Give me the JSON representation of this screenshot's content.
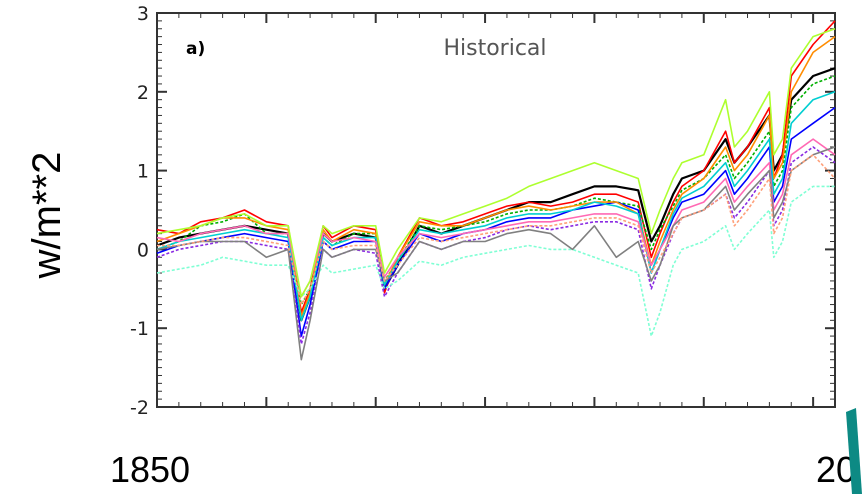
{
  "chart_data": {
    "type": "line",
    "panel_label": "a)",
    "title": "Historical",
    "ylabel": "w/m**2",
    "x_start_label": "1850",
    "x_end_label": "20",
    "xlim": [
      1850,
      2005
    ],
    "ylim": [
      -2,
      3
    ],
    "yticks": [
      "3",
      "2",
      "1",
      "0",
      "-1",
      "-2"
    ],
    "ytick_values": [
      3,
      2,
      1,
      0,
      -1,
      -2
    ],
    "grid": false,
    "legend": "none",
    "x": [
      1850,
      1855,
      1860,
      1865,
      1870,
      1875,
      1880,
      1883,
      1885,
      1888,
      1890,
      1895,
      1900,
      1902,
      1905,
      1910,
      1915,
      1920,
      1925,
      1930,
      1935,
      1940,
      1945,
      1950,
      1955,
      1960,
      1963,
      1965,
      1968,
      1970,
      1975,
      1980,
      1982,
      1985,
      1990,
      1991,
      1993,
      1995,
      2000,
      2005
    ],
    "series": [
      {
        "color": "#000000",
        "values": [
          0.05,
          0.15,
          0.2,
          0.25,
          0.3,
          0.25,
          0.2,
          -0.9,
          -0.6,
          0.2,
          0.1,
          0.2,
          0.15,
          -0.5,
          -0.2,
          0.3,
          0.2,
          0.3,
          0.4,
          0.5,
          0.6,
          0.6,
          0.7,
          0.8,
          0.8,
          0.75,
          0.1,
          0.3,
          0.7,
          0.9,
          1.0,
          1.4,
          1.1,
          1.3,
          1.7,
          1.0,
          1.2,
          1.9,
          2.2,
          2.3
        ]
      },
      {
        "color": "#ff0000",
        "values": [
          0.25,
          0.2,
          0.35,
          0.4,
          0.5,
          0.35,
          0.3,
          -0.8,
          -0.5,
          0.3,
          0.15,
          0.3,
          0.25,
          -0.55,
          -0.1,
          0.4,
          0.3,
          0.35,
          0.45,
          0.55,
          0.6,
          0.55,
          0.6,
          0.7,
          0.7,
          0.6,
          -0.1,
          0.2,
          0.6,
          0.8,
          1.0,
          1.5,
          1.1,
          1.3,
          1.8,
          0.9,
          1.2,
          2.2,
          2.6,
          2.9
        ]
      },
      {
        "color": "#00b000",
        "values": [
          0.0,
          0.1,
          0.3,
          0.35,
          0.45,
          0.2,
          0.2,
          -0.7,
          -0.5,
          0.15,
          0.05,
          0.2,
          0.2,
          -0.4,
          -0.15,
          0.3,
          0.25,
          0.3,
          0.35,
          0.45,
          0.5,
          0.5,
          0.55,
          0.65,
          0.6,
          0.55,
          0.0,
          0.25,
          0.55,
          0.75,
          0.9,
          1.2,
          0.9,
          1.1,
          1.5,
          0.8,
          1.0,
          1.8,
          2.1,
          2.2
        ]
      },
      {
        "color": "#0000ff",
        "values": [
          -0.05,
          0.05,
          0.1,
          0.15,
          0.2,
          0.15,
          0.1,
          -1.1,
          -0.7,
          0.1,
          0.0,
          0.1,
          0.1,
          -0.5,
          -0.2,
          0.2,
          0.1,
          0.2,
          0.25,
          0.35,
          0.4,
          0.4,
          0.5,
          0.55,
          0.6,
          0.5,
          -0.3,
          0.0,
          0.4,
          0.6,
          0.7,
          1.0,
          0.7,
          0.9,
          1.3,
          0.6,
          0.8,
          1.4,
          1.6,
          1.8
        ]
      },
      {
        "color": "#ff8c00",
        "values": [
          0.1,
          0.2,
          0.3,
          0.4,
          0.4,
          0.3,
          0.25,
          -0.85,
          -0.55,
          0.25,
          0.1,
          0.25,
          0.2,
          -0.45,
          -0.1,
          0.35,
          0.3,
          0.3,
          0.4,
          0.5,
          0.55,
          0.5,
          0.55,
          0.6,
          0.6,
          0.45,
          -0.2,
          0.1,
          0.5,
          0.7,
          0.9,
          1.3,
          1.0,
          1.2,
          1.7,
          0.9,
          1.1,
          2.0,
          2.5,
          2.7
        ]
      },
      {
        "color": "#8a2be2",
        "values": [
          -0.1,
          0.0,
          0.05,
          0.1,
          0.1,
          0.05,
          0.0,
          -1.2,
          -0.8,
          0.0,
          -0.1,
          0.0,
          -0.05,
          -0.6,
          -0.3,
          0.1,
          0.0,
          0.1,
          0.15,
          0.25,
          0.3,
          0.25,
          0.3,
          0.35,
          0.35,
          0.25,
          -0.5,
          -0.2,
          0.2,
          0.4,
          0.5,
          0.7,
          0.4,
          0.6,
          1.0,
          0.3,
          0.5,
          1.1,
          1.3,
          1.1
        ]
      },
      {
        "color": "#00ced1",
        "values": [
          0.0,
          0.1,
          0.15,
          0.2,
          0.25,
          0.2,
          0.15,
          -0.9,
          -0.6,
          0.15,
          0.05,
          0.15,
          0.15,
          -0.45,
          -0.15,
          0.25,
          0.2,
          0.25,
          0.3,
          0.4,
          0.45,
          0.45,
          0.5,
          0.6,
          0.55,
          0.45,
          -0.3,
          0.0,
          0.45,
          0.65,
          0.8,
          1.1,
          0.8,
          1.0,
          1.4,
          0.7,
          0.9,
          1.6,
          1.9,
          2.0
        ]
      },
      {
        "color": "#ff69b4",
        "values": [
          0.15,
          0.1,
          0.2,
          0.25,
          0.3,
          0.2,
          0.2,
          -0.6,
          -0.4,
          0.2,
          0.1,
          0.15,
          0.1,
          -0.35,
          -0.1,
          0.2,
          0.15,
          0.2,
          0.25,
          0.3,
          0.35,
          0.35,
          0.4,
          0.45,
          0.45,
          0.35,
          -0.2,
          0.0,
          0.3,
          0.5,
          0.6,
          0.9,
          0.6,
          0.8,
          1.1,
          0.5,
          0.7,
          1.2,
          1.4,
          1.2
        ]
      },
      {
        "color": "#7fffd4",
        "values": [
          -0.3,
          -0.25,
          -0.2,
          -0.1,
          -0.15,
          -0.2,
          -0.2,
          -0.6,
          -0.5,
          -0.2,
          -0.3,
          -0.25,
          -0.2,
          -0.5,
          -0.4,
          -0.15,
          -0.2,
          -0.1,
          -0.05,
          0.0,
          0.05,
          0.0,
          0.0,
          -0.1,
          -0.2,
          -0.3,
          -1.1,
          -0.8,
          -0.2,
          0.0,
          0.1,
          0.3,
          0.0,
          0.2,
          0.5,
          -0.1,
          0.1,
          0.6,
          0.8,
          0.8
        ]
      },
      {
        "color": "#adff2f",
        "values": [
          0.2,
          0.25,
          0.3,
          0.4,
          0.45,
          0.3,
          0.3,
          -0.6,
          -0.4,
          0.3,
          0.2,
          0.3,
          0.3,
          -0.3,
          0.0,
          0.4,
          0.35,
          0.45,
          0.55,
          0.65,
          0.8,
          0.9,
          1.0,
          1.1,
          1.0,
          0.9,
          0.2,
          0.5,
          0.9,
          1.1,
          1.2,
          1.9,
          1.3,
          1.5,
          2.0,
          1.2,
          1.4,
          2.3,
          2.7,
          2.8
        ]
      },
      {
        "color": "#808080",
        "values": [
          0.0,
          0.05,
          0.1,
          0.1,
          0.1,
          -0.1,
          0.0,
          -1.4,
          -0.9,
          0.0,
          -0.1,
          0.0,
          0.0,
          -0.4,
          -0.3,
          0.1,
          0.0,
          0.1,
          0.1,
          0.2,
          0.25,
          0.2,
          0.0,
          0.3,
          -0.1,
          0.1,
          -0.4,
          -0.2,
          0.3,
          0.4,
          0.5,
          0.8,
          0.5,
          0.7,
          1.0,
          0.4,
          0.6,
          1.0,
          1.2,
          1.3
        ]
      },
      {
        "color": "#ffa07a",
        "values": [
          0.05,
          0.05,
          0.1,
          0.15,
          0.15,
          0.1,
          0.05,
          -0.7,
          -0.5,
          0.1,
          0.0,
          0.05,
          0.05,
          -0.4,
          -0.2,
          0.15,
          0.1,
          0.15,
          0.2,
          0.25,
          0.3,
          0.3,
          0.35,
          0.4,
          0.4,
          0.3,
          -0.3,
          -0.1,
          0.2,
          0.4,
          0.5,
          0.7,
          0.3,
          0.5,
          0.9,
          0.2,
          0.4,
          1.0,
          1.2,
          0.9
        ]
      }
    ]
  }
}
